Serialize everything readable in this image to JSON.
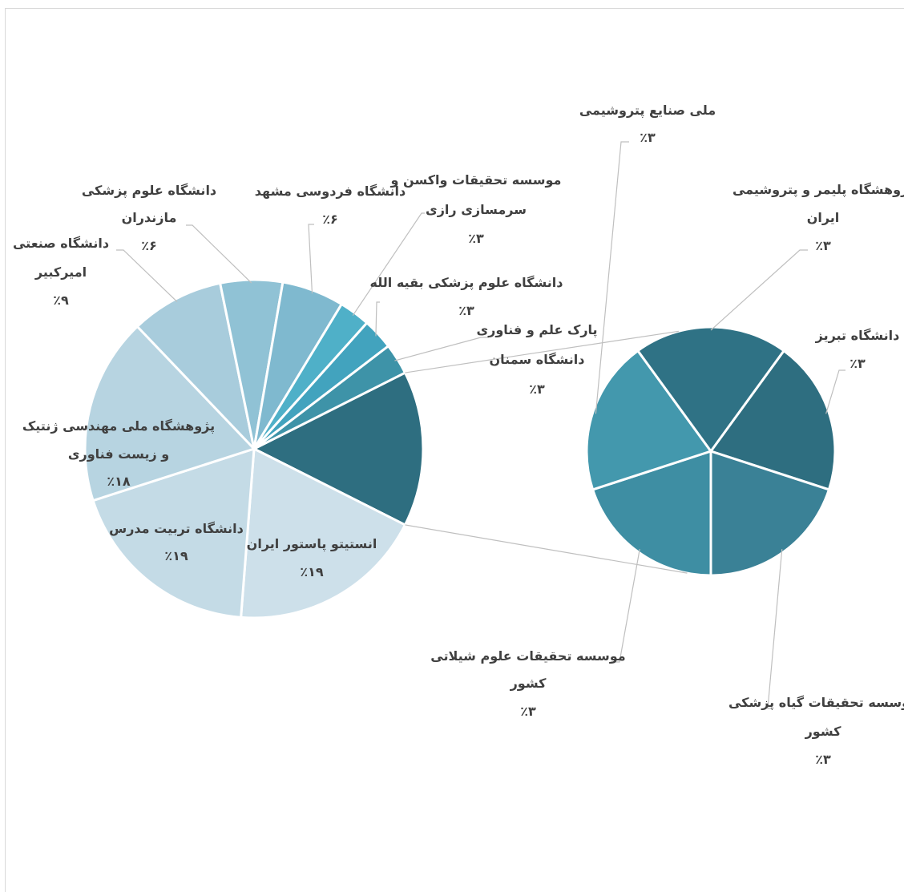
{
  "chart_data": {
    "type": "pie",
    "subtype": "pie-of-pie",
    "title": "",
    "colors": {
      "main": [
        "#3e93a8",
        "#42a3be",
        "#4fb0c8",
        "#7fb9cf",
        "#90c2d5",
        "#a8ccdc",
        "#b7d4e1",
        "#c4dbe6",
        "#cde0ea",
        "#2e6e80"
      ],
      "secondary": [
        "#2e6e80",
        "#3a8196",
        "#3e8ea3",
        "#4398ad",
        "#2f7285"
      ],
      "connector": "#bfbfbf",
      "separator": "#ffffff",
      "text": "#404040"
    },
    "main_slices": [
      {
        "label": "پارک علم و فناوری",
        "value": 3,
        "pct": "٪۳",
        "color": "#3e93a8"
      },
      {
        "label": "دانشگاه علوم پزشکی بقیه الله",
        "value": 3,
        "pct": "٪۳",
        "color": "#42a3be"
      },
      {
        "label": "موسسه تحقیقات واکسن و سرمسازی رازی",
        "value": 3,
        "pct": "٪۳",
        "color": "#4fb0c8"
      },
      {
        "label": "دانشگاه فردوسی مشهد",
        "value": 6,
        "pct": "٪۶",
        "color": "#7fb9cf"
      },
      {
        "label": "دانشگاه علوم پزشکی مازندران",
        "value": 6,
        "pct": "٪۶",
        "color": "#90c2d5"
      },
      {
        "label": "دانشگاه صنعتی امیرکبیر",
        "value": 9,
        "pct": "٪۹",
        "color": "#a8ccdc"
      },
      {
        "label": "پژوهشگاه ملی مهندسی ژنتیک و زیست فناوری",
        "value": 18,
        "pct": "٪۱۸",
        "color": "#b7d4e1"
      },
      {
        "label": "دانشگاه تربیت مدرس",
        "value": 19,
        "pct": "٪۱۹",
        "color": "#c4dbe6"
      },
      {
        "label": "انستیتو پاستور ایران",
        "value": 19,
        "pct": "٪۱۹",
        "color": "#cde0ea"
      },
      {
        "label": "",
        "value": 15,
        "pct": "",
        "color": "#2e6e80"
      }
    ],
    "secondary_slices": [
      {
        "label": "دانشگاه تبریز",
        "value": 3,
        "pct": "٪۳",
        "color": "#2e6e80"
      },
      {
        "label": "موسسه تحقیقات گیاه پزشکی کشور",
        "value": 3,
        "pct": "٪۳",
        "color": "#3a8196"
      },
      {
        "label": "موسسه تحقیقات علوم شیلاتی کشور",
        "value": 3,
        "pct": "٪۳",
        "color": "#3e8ea3"
      },
      {
        "label": "ملی صنایع پتروشیمی",
        "value": 3,
        "pct": "٪۳",
        "color": "#4398ad"
      },
      {
        "label": "پژوهشگاه پلیمر و پتروشیمی ایران",
        "value": 3,
        "pct": "٪۳",
        "color": "#2f7285"
      }
    ],
    "labels": {
      "park": {
        "lines": [
          "پارک علم و فناوری",
          "دانشگاه سمنان"
        ],
        "pct": "٪۳"
      },
      "baqiyatallah": {
        "lines": [
          "دانشگاه علوم پزشکی بقیه الله"
        ],
        "pct": "٪۳"
      },
      "razi": {
        "lines": [
          "موسسه تحقیقات واکسن و",
          "سرمسازی رازی"
        ],
        "pct": "٪۳"
      },
      "ferdowsi": {
        "lines": [
          "دانشگاه فردوسی مشهد"
        ],
        "pct": "٪۶"
      },
      "mazandaran": {
        "lines": [
          "دانشگاه علوم پزشکی",
          "مازندران"
        ],
        "pct": "٪۶"
      },
      "amirkabir": {
        "lines": [
          "دانشگاه صنعتی",
          "امیرکبیر"
        ],
        "pct": "٪۹"
      },
      "nigeb": {
        "lines": [
          "پژوهشگاه ملی مهندسی ژنتیک",
          "و زیست فناوری"
        ],
        "pct": "٪۱۸"
      },
      "modares": {
        "lines": [
          "دانشگاه تربیت مدرس"
        ],
        "pct": "٪۱۹"
      },
      "pasteur": {
        "lines": [
          "انستیتو پاستور ایران"
        ],
        "pct": "٪۱۹"
      },
      "tabriz": {
        "lines": [
          "دانشگاه تبریز"
        ],
        "pct": "٪۳"
      },
      "plant": {
        "lines": [
          "موسسه تحقیقات گیاه پزشکی",
          "کشور"
        ],
        "pct": "٪۳"
      },
      "fisheries": {
        "lines": [
          "موسسه تحقیقات علوم شیلاتی",
          "کشور"
        ],
        "pct": "٪۳"
      },
      "petro": {
        "lines": [
          "ملی صنایع پتروشیمی"
        ],
        "pct": "٪۳"
      },
      "polymer": {
        "lines": [
          "پژوهشگاه پلیمر و پتروشیمی",
          "ایران"
        ],
        "pct": "٪۳"
      }
    }
  }
}
